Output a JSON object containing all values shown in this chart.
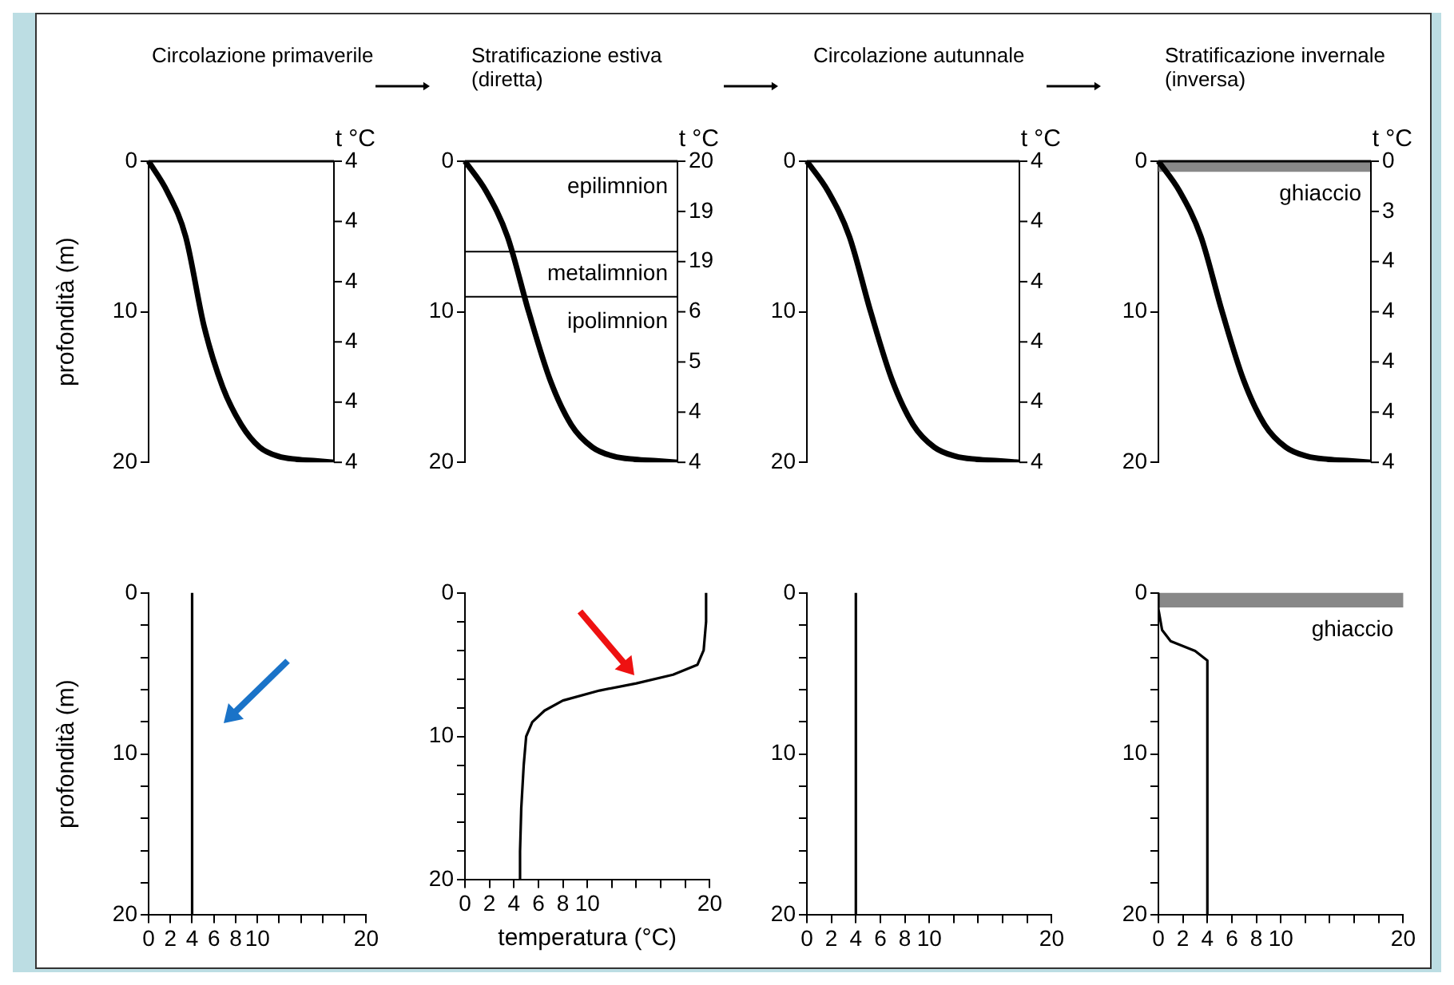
{
  "chart_data": [
    {
      "type": "line",
      "title": "Circolazione primaverile",
      "ylabel": "profondità (m)",
      "y2label": "t °C",
      "categories": [
        null,
        null,
        null,
        null,
        null,
        null,
        null,
        null,
        null,
        null,
        null
      ],
      "series": [
        {
          "color": "#000000",
          "values": [
            0,
            2,
            5,
            11,
            15,
            17.5,
            19,
            19.6,
            19.8,
            19.9,
            20
          ]
        }
      ],
      "ylim": [
        20,
        0
      ],
      "yticks": [
        0,
        10,
        20
      ],
      "annotations": [
        "4",
        "4",
        "4",
        "4",
        "4",
        "4"
      ],
      "marker": "none",
      "grid": false,
      "legend": false
    },
    {
      "type": "line",
      "title": "Stratificazione estiva (diretta)",
      "y2label": "t °C",
      "categories": [
        null,
        null,
        null,
        null,
        null,
        null,
        null,
        null,
        null,
        null,
        null
      ],
      "series": [
        {
          "color": "#000000",
          "values": [
            0,
            2,
            5,
            10,
            14.5,
            17.5,
            19,
            19.6,
            19.8,
            19.9,
            20
          ]
        }
      ],
      "ylim": [
        20,
        0
      ],
      "yticks": [
        0,
        10,
        20
      ],
      "ref_lines": [
        {
          "axis": "y",
          "value": 6
        },
        {
          "axis": "y",
          "value": 9
        }
      ],
      "annotations": [
        "epilimnion",
        "metalimnion",
        "ipolimnion",
        "20",
        "19",
        "19",
        "6",
        "5",
        "4",
        "4"
      ],
      "marker": "none",
      "grid": false,
      "legend": false
    },
    {
      "type": "line",
      "title": "Circolazione autunnale",
      "y2label": "t °C",
      "categories": [
        null,
        null,
        null,
        null,
        null,
        null,
        null,
        null,
        null,
        null,
        null
      ],
      "series": [
        {
          "color": "#000000",
          "values": [
            0,
            2,
            5,
            10,
            14.5,
            17.5,
            19,
            19.6,
            19.8,
            19.9,
            20
          ]
        }
      ],
      "ylim": [
        20,
        0
      ],
      "yticks": [
        0,
        10,
        20
      ],
      "annotations": [
        "4",
        "4",
        "4",
        "4",
        "4",
        "4"
      ],
      "marker": "none",
      "grid": false,
      "legend": false
    },
    {
      "type": "line",
      "title": "Stratificazione invernale (inversa)",
      "y2label": "t °C",
      "categories": [
        null,
        null,
        null,
        null,
        null,
        null,
        null,
        null,
        null,
        null,
        null
      ],
      "series": [
        {
          "color": "#000000",
          "values": [
            0,
            2,
            5,
            10,
            14.5,
            17.5,
            19,
            19.6,
            19.8,
            19.9,
            20
          ]
        }
      ],
      "ylim": [
        20,
        0
      ],
      "yticks": [
        0,
        10,
        20
      ],
      "annotations": [
        "0",
        "3",
        "4",
        "4",
        "4",
        "4",
        "4"
      ],
      "bands": [
        {
          "axis": "y",
          "from": 0,
          "to": 0.7,
          "label": "ghiaccio",
          "color": "#888888"
        }
      ],
      "marker": "none",
      "grid": false,
      "legend": false
    },
    {
      "type": "line",
      "ylabel": "profondità (m)",
      "series": [
        {
          "color": "#000000",
          "x": [
            4,
            4
          ],
          "values": [
            0,
            20
          ]
        }
      ],
      "xlim": [
        0,
        20
      ],
      "xticks": [
        0,
        2,
        4,
        6,
        8,
        10,
        {
          "value": 12,
          "label": null
        },
        {
          "value": 14,
          "label": null
        },
        {
          "value": 16,
          "label": null
        },
        {
          "value": 18,
          "label": null
        },
        20
      ],
      "ylim": [
        20,
        0
      ],
      "yticks": [
        0,
        {
          "value": 2,
          "label": null
        },
        {
          "value": 4,
          "label": null
        },
        {
          "value": 6,
          "label": null
        },
        {
          "value": 8,
          "label": null
        },
        10,
        {
          "value": 12,
          "label": null
        },
        {
          "value": 14,
          "label": null
        },
        {
          "value": 16,
          "label": null
        },
        {
          "value": 18,
          "label": null
        },
        20
      ],
      "marker": "none",
      "grid": false,
      "legend": false
    },
    {
      "type": "line",
      "xlabel": "temperatura (°C)",
      "series": [
        {
          "color": "#000000",
          "x": [
            19.7,
            19.7,
            19.5,
            19,
            17,
            14,
            11,
            8,
            6.5,
            5.5,
            5,
            4.8,
            4.6,
            4.5,
            4.5
          ],
          "values": [
            0,
            2,
            4,
            5,
            5.7,
            6.3,
            6.8,
            7.5,
            8.2,
            9,
            10,
            12,
            15,
            18,
            20
          ]
        }
      ],
      "xlim": [
        0,
        20
      ],
      "xticks": [
        0,
        2,
        4,
        6,
        8,
        10,
        {
          "value": 12,
          "label": null
        },
        {
          "value": 14,
          "label": null
        },
        {
          "value": 16,
          "label": null
        },
        {
          "value": 18,
          "label": null
        },
        20
      ],
      "ylim": [
        20,
        0
      ],
      "yticks": [
        0,
        {
          "value": 2,
          "label": null
        },
        {
          "value": 4,
          "label": null
        },
        {
          "value": 6,
          "label": null
        },
        {
          "value": 8,
          "label": null
        },
        10,
        {
          "value": 12,
          "label": null
        },
        {
          "value": 14,
          "label": null
        },
        {
          "value": 16,
          "label": null
        },
        {
          "value": 18,
          "label": null
        },
        20
      ],
      "marker": "none",
      "grid": false,
      "legend": false
    },
    {
      "type": "line",
      "series": [
        {
          "color": "#000000",
          "x": [
            4,
            4
          ],
          "values": [
            0,
            20
          ]
        }
      ],
      "xlim": [
        0,
        20
      ],
      "xticks": [
        0,
        2,
        4,
        6,
        8,
        10,
        {
          "value": 12,
          "label": null
        },
        {
          "value": 14,
          "label": null
        },
        {
          "value": 16,
          "label": null
        },
        {
          "value": 18,
          "label": null
        },
        20
      ],
      "ylim": [
        20,
        0
      ],
      "yticks": [
        0,
        {
          "value": 2,
          "label": null
        },
        {
          "value": 4,
          "label": null
        },
        {
          "value": 6,
          "label": null
        },
        {
          "value": 8,
          "label": null
        },
        10,
        {
          "value": 12,
          "label": null
        },
        {
          "value": 14,
          "label": null
        },
        {
          "value": 16,
          "label": null
        },
        {
          "value": 18,
          "label": null
        },
        20
      ],
      "marker": "none",
      "grid": false,
      "legend": false
    },
    {
      "type": "line",
      "series": [
        {
          "color": "#000000",
          "x": [
            0,
            0,
            0.3,
            1,
            3,
            4,
            4
          ],
          "values": [
            0,
            1,
            2.3,
            3,
            3.6,
            4.2,
            20
          ]
        }
      ],
      "xlim": [
        0,
        20
      ],
      "xticks": [
        0,
        2,
        4,
        6,
        8,
        10,
        {
          "value": 12,
          "label": null
        },
        {
          "value": 14,
          "label": null
        },
        {
          "value": 16,
          "label": null
        },
        {
          "value": 18,
          "label": null
        },
        20
      ],
      "ylim": [
        20,
        0
      ],
      "yticks": [
        0,
        {
          "value": 2,
          "label": null
        },
        {
          "value": 4,
          "label": null
        },
        {
          "value": 6,
          "label": null
        },
        {
          "value": 8,
          "label": null
        },
        10,
        {
          "value": 12,
          "label": null
        },
        {
          "value": 14,
          "label": null
        },
        {
          "value": 16,
          "label": null
        },
        {
          "value": 18,
          "label": null
        },
        20
      ],
      "bands": [
        {
          "axis": "y",
          "from": 0,
          "to": 0.9,
          "label": "ghiaccio",
          "color": "#888888"
        }
      ],
      "marker": "none",
      "grid": false,
      "legend": false
    }
  ]
}
